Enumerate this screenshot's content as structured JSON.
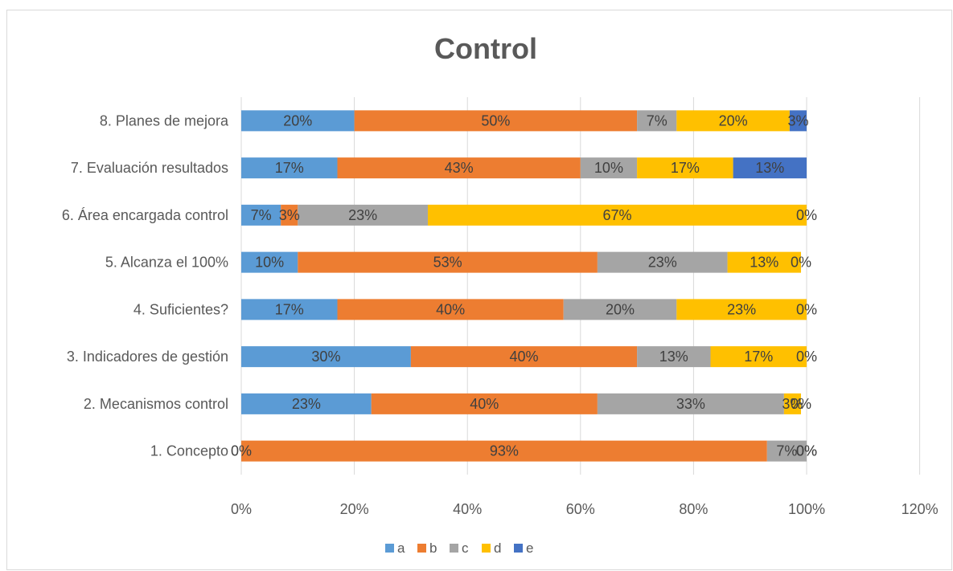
{
  "chart_data": {
    "type": "bar",
    "orientation": "horizontal",
    "stacked": true,
    "title": "Control",
    "categories": [
      "1. Concepto",
      "2. Mecanismos control",
      "3. Indicadores de gestión",
      "4. Suficientes?",
      "5. Alcanza el 100%",
      "6. Área encargada control",
      "7. Evaluación resultados",
      "8. Planes de mejora"
    ],
    "series": [
      {
        "name": "a",
        "color": "#5b9bd5",
        "values": [
          0,
          23,
          30,
          17,
          10,
          7,
          17,
          20
        ],
        "labels": [
          "0%",
          "23%",
          "30%",
          "17%",
          "10%",
          "7%",
          "17%",
          "20%"
        ]
      },
      {
        "name": "b",
        "color": "#ed7d31",
        "values": [
          93,
          40,
          40,
          40,
          53,
          3,
          43,
          50
        ],
        "labels": [
          "93%",
          "40%",
          "40%",
          "40%",
          "53%",
          "3%",
          "43%",
          "50%"
        ]
      },
      {
        "name": "c",
        "color": "#a5a5a5",
        "values": [
          7,
          33,
          13,
          20,
          23,
          23,
          10,
          7
        ],
        "labels": [
          "7%",
          "33%",
          "13%",
          "20%",
          "23%",
          "23%",
          "10%",
          "7%"
        ]
      },
      {
        "name": "d",
        "color": "#ffc000",
        "values": [
          0,
          3,
          17,
          23,
          13,
          67,
          17,
          20
        ],
        "labels": [
          "0%",
          "3%",
          "17%",
          "23%",
          "13%",
          "67%",
          "17%",
          "20%"
        ]
      },
      {
        "name": "e",
        "color": "#4472c4",
        "values": [
          0,
          0,
          0,
          0,
          0,
          0,
          13,
          3
        ],
        "labels": [
          "0%",
          "0%",
          "0%",
          "0%",
          "0%",
          "0%",
          "13%",
          "3%"
        ]
      }
    ],
    "xlim": [
      0,
      120
    ],
    "x_ticks": [
      "0%",
      "20%",
      "40%",
      "60%",
      "80%",
      "100%",
      "120%"
    ],
    "grid": true,
    "legend": "bottom"
  }
}
